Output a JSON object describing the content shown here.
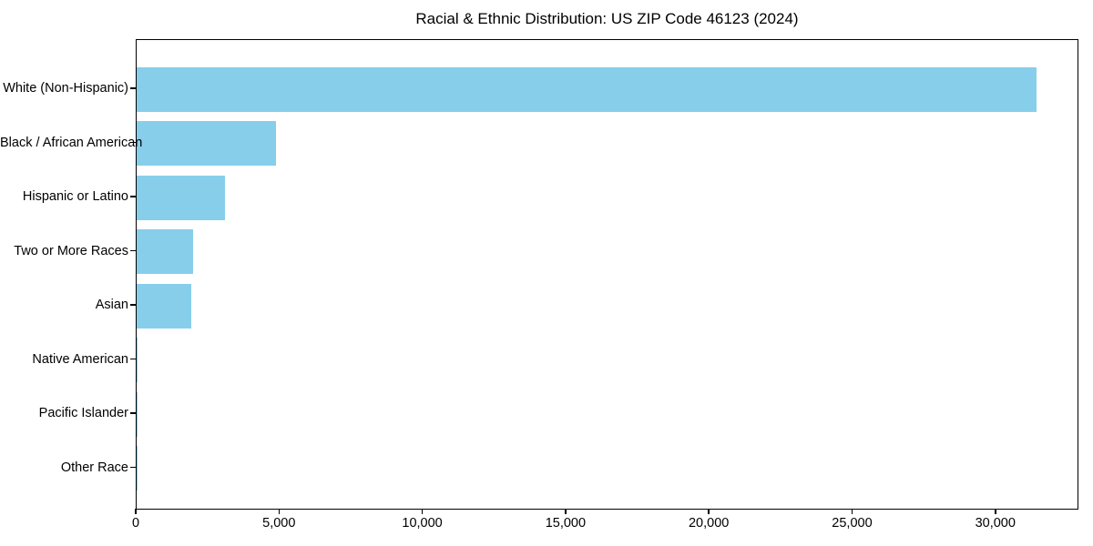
{
  "chart_data": {
    "type": "bar",
    "orientation": "horizontal",
    "title": "Racial & Ethnic Distribution: US ZIP Code 46123 (2024)",
    "categories": [
      "White (Non-Hispanic)",
      "Black / African American",
      "Hispanic or Latino",
      "Two or More Races",
      "Asian",
      "Native American",
      "Pacific Islander",
      "Other Race"
    ],
    "values": [
      31400,
      4850,
      3080,
      1960,
      1900,
      40,
      10,
      10
    ],
    "xlabel": "",
    "ylabel": "",
    "xlim": [
      0,
      32900
    ],
    "x_ticks": [
      0,
      5000,
      10000,
      15000,
      20000,
      25000,
      30000
    ],
    "x_tick_labels": [
      "0",
      "5,000",
      "10,000",
      "15,000",
      "20,000",
      "25,000",
      "30,000"
    ],
    "grid": false,
    "legend_position": "none",
    "bar_color": "#87CEEB",
    "background_color": "#ffffff",
    "spine_color": "#000000"
  }
}
